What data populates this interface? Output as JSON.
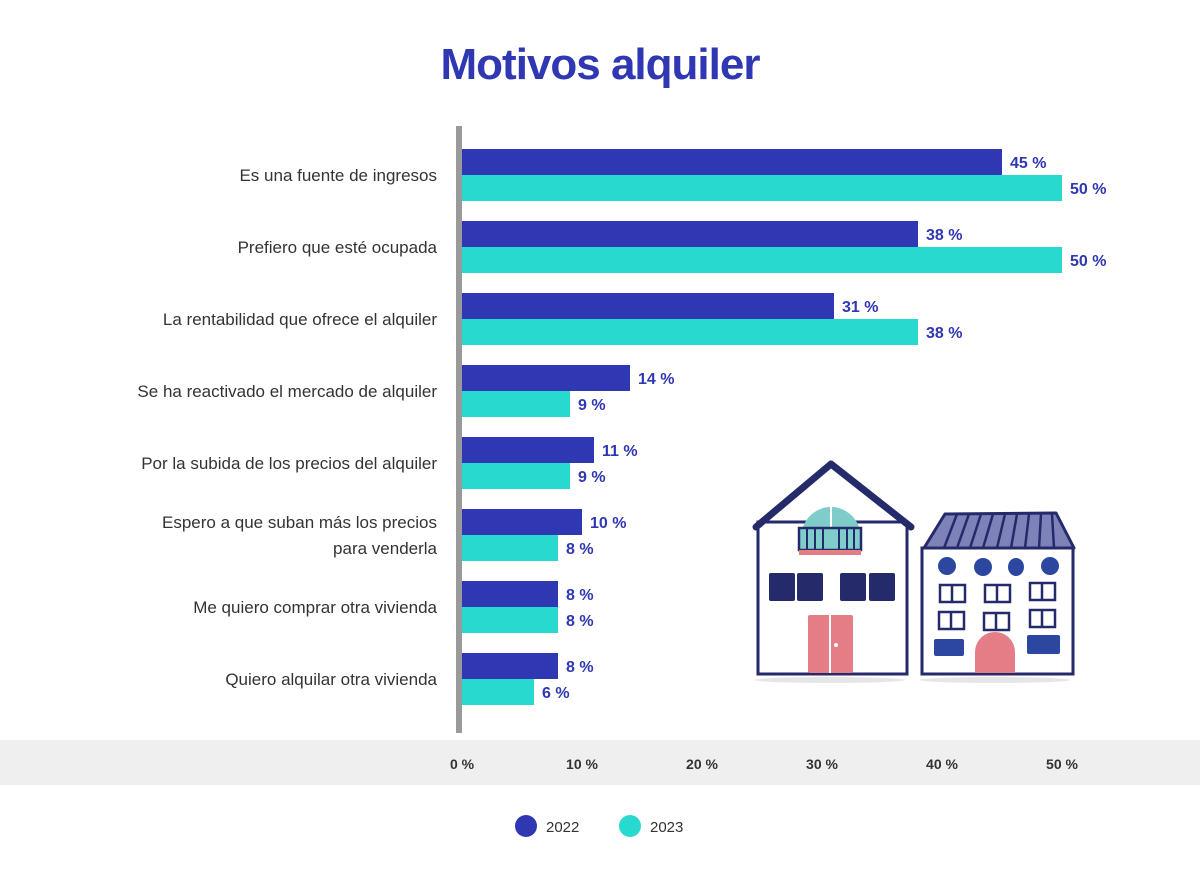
{
  "chart_data": {
    "type": "bar",
    "orientation": "horizontal",
    "title": "Motivos alquiler",
    "categories": [
      [
        "Es una fuente de ingresos"
      ],
      [
        "Prefiero que esté ocupada"
      ],
      [
        "La rentabilidad que ofrece el alquiler"
      ],
      [
        "Se ha reactivado el mercado de alquiler"
      ],
      [
        "Por la subida de los precios del alquiler"
      ],
      [
        "Espero a que suban más los precios",
        "para venderla"
      ],
      [
        "Me quiero comprar otra vivienda"
      ],
      [
        "Quiero alquilar otra vivienda"
      ]
    ],
    "series": [
      {
        "name": "2022",
        "color": "#2f37b3",
        "values": [
          45,
          38,
          31,
          14,
          11,
          10,
          8,
          8
        ]
      },
      {
        "name": "2023",
        "color": "#27d9cf",
        "values": [
          50,
          50,
          38,
          9,
          9,
          8,
          8,
          6
        ]
      }
    ],
    "value_suffix": " %",
    "xlim": [
      0,
      50
    ],
    "xticks": [
      "0 %",
      "10 %",
      "20 %",
      "30 %",
      "40 %",
      "50 %"
    ],
    "legend": "bottom",
    "grid": false
  }
}
